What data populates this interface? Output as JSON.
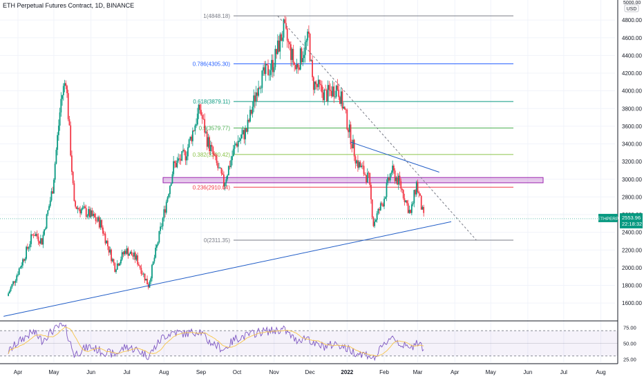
{
  "header": {
    "title": "ETH Perpetual Futures Contract, 1D, BINANCE"
  },
  "price_scale": {
    "unit": "USD",
    "top_label": "5000.00",
    "ticks": [
      "4800.00",
      "4600.00",
      "4400.00",
      "4200.00",
      "4000.00",
      "3800.00",
      "3600.00",
      "3400.00",
      "3200.00",
      "3000.00",
      "2800.00",
      "2600.00",
      "2400.00",
      "2200.00",
      "2000.00",
      "1800.00",
      "1600.00"
    ],
    "current_symbol": "ETHPERP",
    "current_price": "2553.96",
    "countdown": "22:18:32",
    "accent_color": "#089981"
  },
  "rsi_scale": {
    "ticks": [
      "75.00",
      "50.00",
      "25.00"
    ]
  },
  "time_axis": {
    "labels": [
      "Apr",
      "May",
      "Jun",
      "Jul",
      "Aug",
      "Sep",
      "Oct",
      "Nov",
      "Dec",
      "2022",
      "Feb",
      "Mar",
      "Apr",
      "May",
      "Jun",
      "Jul",
      "Aug"
    ]
  },
  "fib_levels": [
    {
      "label": "1(4848.18)",
      "value": 4848.18,
      "color": "#787b86"
    },
    {
      "label": "0.786(4305.30)",
      "value": 4305.3,
      "color": "#2962ff"
    },
    {
      "label": "0.618(3879.11)",
      "value": 3879.11,
      "color": "#089981"
    },
    {
      "label": "0.5(3579.77)",
      "value": 3579.77,
      "color": "#4caf50"
    },
    {
      "label": "0.382(3280.42)",
      "value": 3280.42,
      "color": "#8bc34a"
    },
    {
      "label": "0.236(2910.04)",
      "value": 2910.04,
      "color": "#f23645"
    },
    {
      "label": "0(2311.35)",
      "value": 2311.35,
      "color": "#787b86"
    }
  ],
  "chart_data": {
    "type": "candlestick",
    "title": "ETH Perpetual Futures Contract, 1D, BINANCE",
    "y_unit": "USD",
    "ylim": [
      1450,
      5000
    ],
    "rsi_ylim": [
      20,
      80
    ],
    "rsi_levels": [
      70,
      50,
      30
    ],
    "x": [
      "2021-03-24",
      "2021-04-01",
      "2021-04-08",
      "2021-04-15",
      "2021-04-22",
      "2021-05-01",
      "2021-05-08",
      "2021-05-12",
      "2021-05-19",
      "2021-05-26",
      "2021-06-01",
      "2021-06-10",
      "2021-06-22",
      "2021-07-01",
      "2021-07-10",
      "2021-07-20",
      "2021-08-01",
      "2021-08-10",
      "2021-08-20",
      "2021-09-01",
      "2021-09-07",
      "2021-09-21",
      "2021-10-01",
      "2021-10-10",
      "2021-10-20",
      "2021-11-01",
      "2021-11-10",
      "2021-11-20",
      "2021-12-01",
      "2021-12-04",
      "2021-12-15",
      "2021-12-25",
      "2022-01-01",
      "2022-01-10",
      "2022-01-20",
      "2022-01-24",
      "2022-02-01",
      "2022-02-08",
      "2022-02-15",
      "2022-02-24",
      "2022-03-01",
      "2022-03-07"
    ],
    "close": [
      1680,
      1920,
      2150,
      2400,
      2300,
      2900,
      3900,
      4150,
      2700,
      2650,
      2600,
      2500,
      2000,
      2200,
      2100,
      1800,
      2550,
      3150,
      3280,
      3800,
      3450,
      2950,
      3400,
      3550,
      4100,
      4300,
      4700,
      4250,
      4600,
      4100,
      3950,
      4050,
      3700,
      3200,
      3000,
      2500,
      2750,
      3100,
      2950,
      2600,
      2950,
      2560
    ],
    "rsi": [
      35,
      50,
      60,
      68,
      55,
      70,
      78,
      72,
      32,
      40,
      45,
      38,
      32,
      45,
      40,
      30,
      60,
      68,
      65,
      70,
      55,
      40,
      58,
      62,
      68,
      70,
      72,
      55,
      60,
      48,
      45,
      50,
      42,
      35,
      32,
      25,
      45,
      62,
      50,
      40,
      55,
      42
    ],
    "trendlines": [
      {
        "name": "support",
        "color": "#1e5bc6",
        "from": [
          "2021-03-20",
          1450
        ],
        "to": [
          "2022-03-29",
          2520
        ]
      },
      {
        "name": "resistance",
        "color": "#1e5bc6",
        "from": [
          "2022-01-04",
          3420
        ],
        "to": [
          "2022-03-19",
          3080
        ]
      },
      {
        "name": "ath-diagonal",
        "color": "#787b86",
        "dashed": true,
        "from": [
          "2021-11-04",
          4848.18
        ],
        "to": [
          "2022-04-19",
          2311.35
        ]
      }
    ],
    "zone": {
      "low": 2960,
      "high": 3020,
      "color": "#9c27b0"
    }
  }
}
